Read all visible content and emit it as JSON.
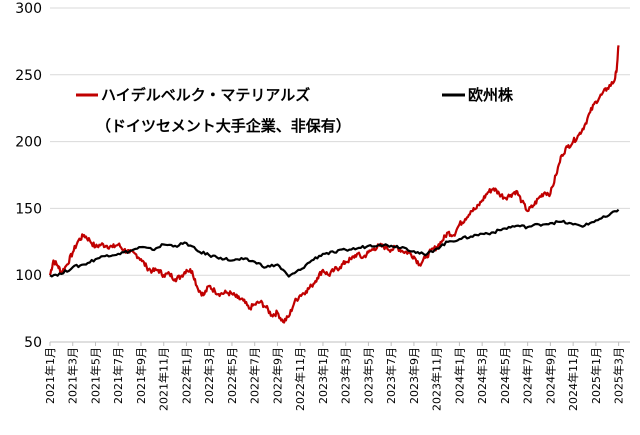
{
  "chart_data": {
    "type": "line",
    "title": "",
    "xlabel": "",
    "ylabel": "",
    "ylim": [
      50,
      300
    ],
    "yticks": [
      50,
      100,
      150,
      200,
      250,
      300
    ],
    "grid": "horizontal",
    "x_tick_labels": [
      "2021年1月",
      "2021年3月",
      "2021年5月",
      "2021年7月",
      "2021年9月",
      "2021年11月",
      "2022年1月",
      "2022年3月",
      "2022年5月",
      "2022年7月",
      "2022年9月",
      "2022年11月",
      "2023年1月",
      "2023年3月",
      "2023年5月",
      "2023年7月",
      "2023年9月",
      "2023年11月",
      "2024年1月",
      "2024年3月",
      "2024年5月",
      "2024年7月",
      "2024年9月",
      "2024年11月",
      "2025年1月",
      "2025年3月"
    ],
    "x_months_span": 51,
    "legend": [
      {
        "text": "ハイデルベルク・マテリアルズ",
        "color": "#c00000"
      },
      {
        "text": "（ドイツセメント大手企業、非保有）",
        "color": null
      },
      {
        "text": "欧州株",
        "color": "#000000"
      }
    ],
    "series": [
      {
        "name": "ハイデルベルク・マテリアルズ",
        "color": "#c00000",
        "points": [
          [
            0,
            100
          ],
          [
            0.3,
            111
          ],
          [
            0.7,
            107
          ],
          [
            1,
            102
          ],
          [
            1.5,
            108
          ],
          [
            2,
            117
          ],
          [
            2.5,
            126
          ],
          [
            3,
            130
          ],
          [
            3.5,
            126
          ],
          [
            4,
            121
          ],
          [
            4.5,
            123
          ],
          [
            5,
            122
          ],
          [
            5.5,
            121
          ],
          [
            6,
            123
          ],
          [
            6.5,
            119
          ],
          [
            7,
            117
          ],
          [
            7.5,
            116
          ],
          [
            8,
            112
          ],
          [
            8.5,
            106
          ],
          [
            9,
            103
          ],
          [
            9.5,
            104
          ],
          [
            10,
            100
          ],
          [
            10.5,
            101
          ],
          [
            11,
            97
          ],
          [
            11.5,
            99
          ],
          [
            12,
            104
          ],
          [
            12.5,
            103
          ],
          [
            13,
            90
          ],
          [
            13.5,
            85
          ],
          [
            14,
            92
          ],
          [
            14.5,
            88
          ],
          [
            15,
            86
          ],
          [
            15.5,
            87
          ],
          [
            16,
            86
          ],
          [
            16.5,
            83
          ],
          [
            17,
            81
          ],
          [
            17.5,
            75
          ],
          [
            18,
            78
          ],
          [
            18.5,
            80
          ],
          [
            19,
            76
          ],
          [
            19.5,
            70
          ],
          [
            20,
            72
          ],
          [
            20.5,
            65
          ],
          [
            21,
            69
          ],
          [
            21.5,
            80
          ],
          [
            22,
            85
          ],
          [
            22.5,
            88
          ],
          [
            23,
            92
          ],
          [
            23.5,
            98
          ],
          [
            24,
            104
          ],
          [
            24.5,
            100
          ],
          [
            25,
            104
          ],
          [
            25.5,
            106
          ],
          [
            26,
            110
          ],
          [
            26.5,
            112
          ],
          [
            27,
            116
          ],
          [
            27.5,
            113
          ],
          [
            28,
            117
          ],
          [
            28.5,
            120
          ],
          [
            29,
            122
          ],
          [
            29.5,
            121
          ],
          [
            30,
            119
          ],
          [
            30.5,
            121
          ],
          [
            31,
            118
          ],
          [
            31.5,
            117
          ],
          [
            32,
            114
          ],
          [
            32.5,
            108
          ],
          [
            33,
            113
          ],
          [
            33.5,
            118
          ],
          [
            34,
            121
          ],
          [
            34.5,
            126
          ],
          [
            35,
            132
          ],
          [
            35.5,
            130
          ],
          [
            36,
            138
          ],
          [
            36.5,
            142
          ],
          [
            37,
            148
          ],
          [
            37.5,
            150
          ],
          [
            38,
            156
          ],
          [
            38.5,
            162
          ],
          [
            39,
            165
          ],
          [
            39.5,
            161
          ],
          [
            40,
            158
          ],
          [
            40.5,
            160
          ],
          [
            41,
            163
          ],
          [
            41.5,
            155
          ],
          [
            42,
            148
          ],
          [
            42.5,
            152
          ],
          [
            43,
            158
          ],
          [
            43.5,
            162
          ],
          [
            44,
            161
          ],
          [
            44.5,
            175
          ],
          [
            45,
            190
          ],
          [
            45.5,
            196
          ],
          [
            46,
            200
          ],
          [
            46.5,
            205
          ],
          [
            47,
            212
          ],
          [
            47.5,
            222
          ],
          [
            48,
            230
          ],
          [
            48.5,
            235
          ],
          [
            49,
            240
          ],
          [
            49.6,
            245
          ],
          [
            49.8,
            252
          ],
          [
            50,
            272
          ]
        ]
      },
      {
        "name": "欧州株",
        "color": "#000000",
        "points": [
          [
            0,
            100
          ],
          [
            1,
            101
          ],
          [
            2,
            106
          ],
          [
            3,
            108
          ],
          [
            4,
            112
          ],
          [
            5,
            115
          ],
          [
            6,
            116
          ],
          [
            7,
            118
          ],
          [
            8,
            121
          ],
          [
            9,
            119
          ],
          [
            10,
            123
          ],
          [
            11,
            122
          ],
          [
            12,
            124
          ],
          [
            13,
            118
          ],
          [
            14,
            115
          ],
          [
            15,
            113
          ],
          [
            16,
            111
          ],
          [
            17,
            112
          ],
          [
            18,
            110
          ],
          [
            19,
            106
          ],
          [
            20,
            108
          ],
          [
            21,
            99
          ],
          [
            22,
            104
          ],
          [
            23,
            111
          ],
          [
            24,
            116
          ],
          [
            25,
            117
          ],
          [
            26,
            119
          ],
          [
            27,
            120
          ],
          [
            28,
            122
          ],
          [
            29,
            123
          ],
          [
            30,
            122
          ],
          [
            31,
            121
          ],
          [
            32,
            118
          ],
          [
            33,
            115
          ],
          [
            34,
            120
          ],
          [
            35,
            125
          ],
          [
            36,
            127
          ],
          [
            37,
            129
          ],
          [
            38,
            131
          ],
          [
            39,
            132
          ],
          [
            40,
            135
          ],
          [
            41,
            137
          ],
          [
            42,
            136
          ],
          [
            43,
            138
          ],
          [
            44,
            139
          ],
          [
            45,
            140
          ],
          [
            46,
            138
          ],
          [
            47,
            137
          ],
          [
            48,
            141
          ],
          [
            49,
            144
          ],
          [
            50,
            149
          ]
        ]
      }
    ]
  }
}
